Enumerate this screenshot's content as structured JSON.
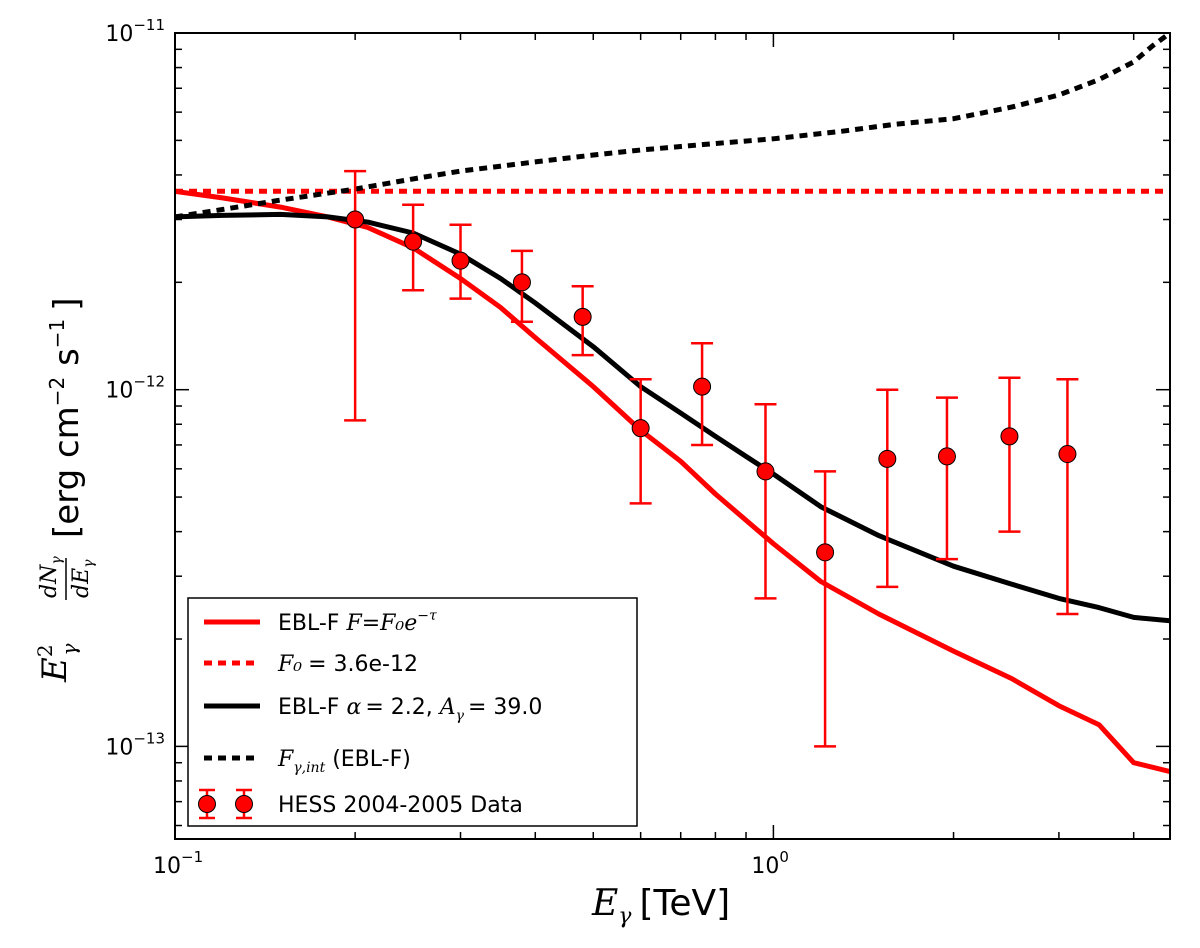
{
  "chart_data": {
    "type": "line",
    "xscale": "log",
    "yscale": "log",
    "xlim": [
      0.1,
      4.6
    ],
    "ylim": [
      5.5e-14,
      1e-11
    ],
    "x_tick_labels": [
      {
        "value": 0.1,
        "mantissa": "10",
        "exp": "−1"
      },
      {
        "value": 1,
        "mantissa": "10",
        "exp": "0"
      }
    ],
    "y_tick_labels": [
      {
        "value": 1e-11,
        "mantissa": "10",
        "exp": "−11"
      },
      {
        "value": 1e-12,
        "mantissa": "10",
        "exp": "−12"
      },
      {
        "value": 1e-13,
        "mantissa": "10",
        "exp": "−13"
      }
    ],
    "xlabel": {
      "symbol": "E",
      "sub": "γ",
      "unit": "[TeV]"
    },
    "ylabel": {
      "prefix": "E",
      "sup": "2",
      "sub": "γ",
      "frac_num": "dN",
      "frac_num_sub": "γ",
      "frac_den": "dE",
      "frac_den_sub": "γ",
      "unit_open": "[erg cm",
      "unit_exp1": "−2",
      "unit_mid": " s",
      "unit_exp2": "−1",
      "unit_close": "]"
    },
    "series": [
      {
        "name": "EBL-F  F=F0e−τ",
        "style": "solid",
        "color": "#ff0000",
        "x": [
          0.1,
          0.12,
          0.15,
          0.18,
          0.21,
          0.25,
          0.3,
          0.35,
          0.4,
          0.5,
          0.6,
          0.7,
          0.8,
          1.0,
          1.2,
          1.5,
          2.0,
          2.5,
          3.0,
          3.5,
          4.0,
          4.6
        ],
        "y": [
          3.6e-12,
          3.45e-12,
          3.25e-12,
          3.05e-12,
          2.85e-12,
          2.5e-12,
          2.05e-12,
          1.7e-12,
          1.4e-12,
          1.02e-12,
          7.7e-13,
          6.3e-13,
          5.1e-13,
          3.7e-13,
          2.9e-13,
          2.35e-13,
          1.85e-13,
          1.55e-13,
          1.3e-13,
          1.15e-13,
          9e-14,
          8.5e-14
        ]
      },
      {
        "name": "F0 = 3.6e-12",
        "style": "dashed",
        "color": "#ff0000",
        "x": [
          0.1,
          4.6
        ],
        "y": [
          3.6e-12,
          3.6e-12
        ]
      },
      {
        "name": "EBL-F  α = 2.2,  Aγ = 39.0",
        "style": "solid",
        "color": "#000000",
        "x": [
          0.1,
          0.12,
          0.15,
          0.18,
          0.21,
          0.25,
          0.3,
          0.35,
          0.4,
          0.5,
          0.6,
          0.7,
          0.8,
          0.9,
          1.0,
          1.2,
          1.5,
          2.0,
          2.5,
          3.0,
          3.5,
          4.0,
          4.6
        ],
        "y": [
          3.05e-12,
          3.08e-12,
          3.1e-12,
          3.05e-12,
          2.95e-12,
          2.75e-12,
          2.4e-12,
          2.05e-12,
          1.75e-12,
          1.32e-12,
          1.02e-12,
          8.6e-13,
          7.4e-13,
          6.5e-13,
          5.8e-13,
          4.7e-13,
          3.9e-13,
          3.2e-13,
          2.85e-13,
          2.6e-13,
          2.45e-13,
          2.3e-13,
          2.25e-13
        ]
      },
      {
        "name": "Fγ,int (EBL-F)",
        "style": "dashed",
        "color": "#000000",
        "x": [
          0.1,
          0.12,
          0.15,
          0.2,
          0.25,
          0.3,
          0.4,
          0.5,
          0.6,
          0.8,
          1.0,
          1.3,
          1.6,
          2.0,
          2.5,
          3.0,
          3.5,
          4.0,
          4.3,
          4.6
        ],
        "y": [
          3.05e-12,
          3.2e-12,
          3.4e-12,
          3.65e-12,
          3.9e-12,
          4.1e-12,
          4.35e-12,
          4.55e-12,
          4.7e-12,
          4.9e-12,
          5.05e-12,
          5.3e-12,
          5.55e-12,
          5.75e-12,
          6.2e-12,
          6.7e-12,
          7.4e-12,
          8.3e-12,
          9.2e-12,
          1e-11
        ]
      }
    ],
    "data_points": {
      "name": "HESS 2004-2005 Data",
      "color": "#ff0000",
      "points": [
        {
          "x": 0.2,
          "y": 3e-12,
          "ylo": 8.2e-13,
          "yhi": 4.1e-12
        },
        {
          "x": 0.25,
          "y": 2.6e-12,
          "ylo": 1.9e-12,
          "yhi": 3.3e-12
        },
        {
          "x": 0.3,
          "y": 2.3e-12,
          "ylo": 1.8e-12,
          "yhi": 2.9e-12
        },
        {
          "x": 0.38,
          "y": 2e-12,
          "ylo": 1.55e-12,
          "yhi": 2.45e-12
        },
        {
          "x": 0.48,
          "y": 1.6e-12,
          "ylo": 1.25e-12,
          "yhi": 1.95e-12
        },
        {
          "x": 0.6,
          "y": 7.8e-13,
          "ylo": 4.8e-13,
          "yhi": 1.07e-12
        },
        {
          "x": 0.76,
          "y": 1.02e-12,
          "ylo": 7e-13,
          "yhi": 1.35e-12
        },
        {
          "x": 0.97,
          "y": 5.9e-13,
          "ylo": 2.6e-13,
          "yhi": 9.1e-13
        },
        {
          "x": 1.22,
          "y": 3.5e-13,
          "ylo": 1e-13,
          "yhi": 5.9e-13
        },
        {
          "x": 1.55,
          "y": 6.4e-13,
          "ylo": 2.8e-13,
          "yhi": 1e-12
        },
        {
          "x": 1.95,
          "y": 6.5e-13,
          "ylo": 3.35e-13,
          "yhi": 9.5e-13
        },
        {
          "x": 2.48,
          "y": 7.4e-13,
          "ylo": 4e-13,
          "yhi": 1.08e-12
        },
        {
          "x": 3.1,
          "y": 6.6e-13,
          "ylo": 2.35e-13,
          "yhi": 1.07e-12
        }
      ]
    },
    "legend": {
      "placement": "lower-left",
      "entries": [
        {
          "label_prefix": "EBL-F  ",
          "label_math": "F=F₀e",
          "label_sup": "−τ"
        },
        {
          "label_prefix": " ",
          "label_math": "F₀",
          "label_suffix": "= 3.6e-12"
        },
        {
          "label_prefix": "EBL-F  ",
          "label_math": "α",
          "label_suffix": "= 2.2,  ",
          "label_math2": "A",
          "label_sub2": "γ",
          "label_suffix2": "= 39.0"
        },
        {
          "label_math": "F",
          "label_sub": "γ,int",
          "label_suffix": " (EBL-F)"
        },
        {
          "label_prefix": "HESS 2004-2005 Data"
        }
      ]
    }
  }
}
